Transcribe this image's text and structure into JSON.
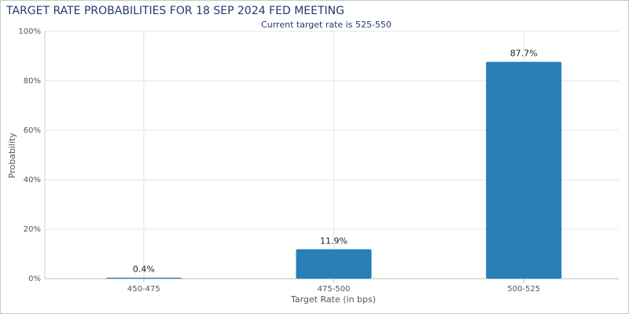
{
  "chart_data": {
    "type": "bar",
    "title": "TARGET RATE PROBABILITIES FOR 18 SEP 2024 FED MEETING",
    "subtitle": "Current target rate is 525-550",
    "x_label": "Target Rate (in bps)",
    "y_label": "Probability",
    "categories": [
      "450-475",
      "475-500",
      "500-525"
    ],
    "values": [
      0.4,
      11.9,
      87.7
    ],
    "value_labels": [
      "0.4%",
      "11.9%",
      "87.7%"
    ],
    "color": "#2980b9",
    "ylim": [
      0,
      100
    ],
    "yticks": [
      {
        "value": 0,
        "label": "0%"
      },
      {
        "value": 20,
        "label": "20%"
      },
      {
        "value": 40,
        "label": "40%"
      },
      {
        "value": 60,
        "label": "60%"
      },
      {
        "value": 80,
        "label": "80%"
      },
      {
        "value": 100,
        "label": "100%"
      }
    ],
    "grid": true
  }
}
